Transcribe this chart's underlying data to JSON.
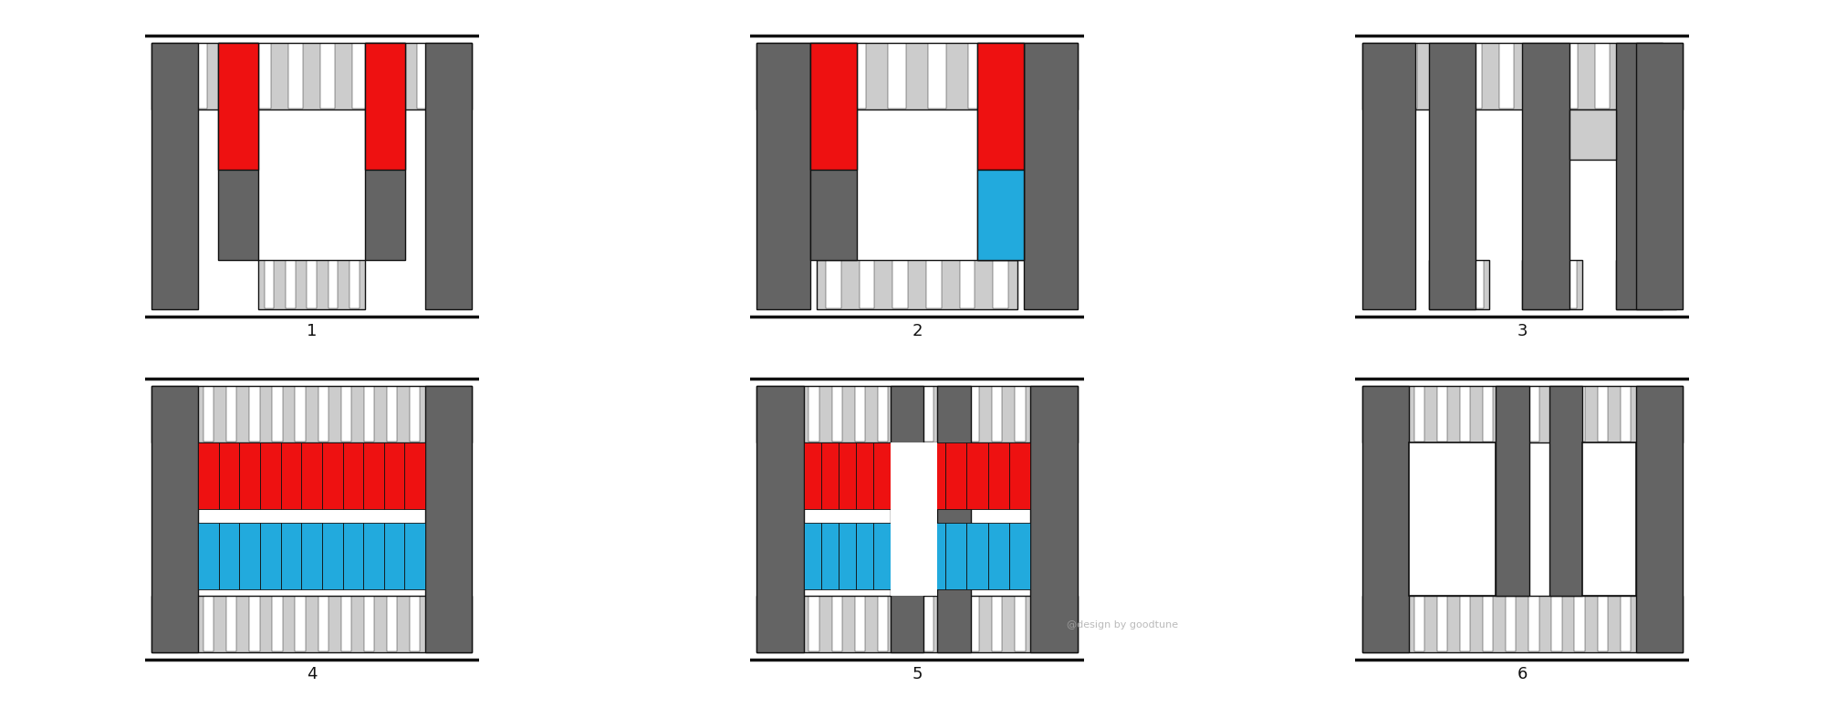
{
  "bg": "#ffffff",
  "dark_gray": "#646464",
  "light_gray": "#cccccc",
  "red": "#ee1111",
  "blue": "#22aadd",
  "black": "#111111",
  "label_fs": 13,
  "watermark": "@design by goodtune"
}
